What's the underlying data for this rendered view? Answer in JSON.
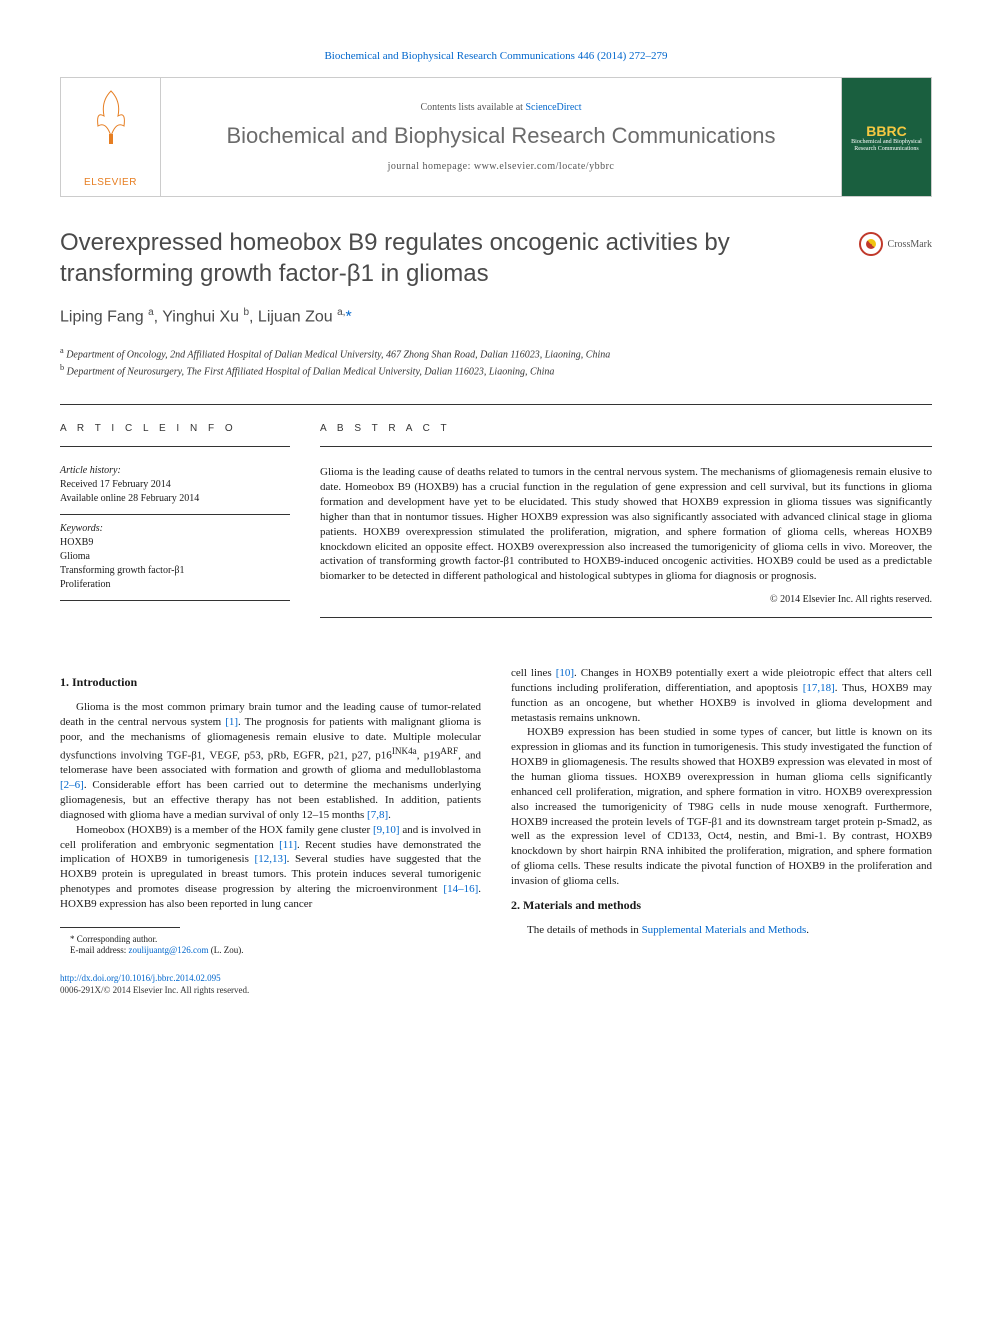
{
  "journal_ref": {
    "prefix": "Biochemical and Biophysical Research Communications 446 (2014) 272–279",
    "link_label": ""
  },
  "banner": {
    "publisher": "ELSEVIER",
    "contents_prefix": "Contents lists available at ",
    "contents_link": "ScienceDirect",
    "journal_title": "Biochemical and Biophysical Research Communications",
    "homepage_prefix": "journal homepage: ",
    "homepage_url": "www.elsevier.com/locate/ybbrc",
    "cover_label": "Biochemical and Biophysical Research Communications",
    "cover_abbrev": "BBRC"
  },
  "crossmark_label": "CrossMark",
  "title": "Overexpressed homeobox B9 regulates oncogenic activities by transforming growth factor-β1 in gliomas",
  "authors_html": "Liping Fang <sup>a</sup>, Yinghui Xu <sup>b</sup>, Lijuan Zou <sup>a,</sup><a href=\"#\">*</a>",
  "affiliations": [
    "a Department of Oncology, 2nd Affiliated Hospital of Dalian Medical University, 467 Zhong Shan Road, Dalian 116023, Liaoning, China",
    "b Department of Neurosurgery, The First Affiliated Hospital of Dalian Medical University, Dalian 116023, Liaoning, China"
  ],
  "info": {
    "heading": "A R T I C L E   I N F O",
    "history_label": "Article history:",
    "history_lines": "Received 17 February 2014\nAvailable online 28 February 2014",
    "keywords_label": "Keywords:",
    "keywords": "HOXB9\nGlioma\nTransforming growth factor-β1\nProliferation"
  },
  "abstract": {
    "heading": "A B S T R A C T",
    "text": "Glioma is the leading cause of deaths related to tumors in the central nervous system. The mechanisms of gliomagenesis remain elusive to date. Homeobox B9 (HOXB9) has a crucial function in the regulation of gene expression and cell survival, but its functions in glioma formation and development have yet to be elucidated. This study showed that HOXB9 expression in glioma tissues was significantly higher than that in nontumor tissues. Higher HOXB9 expression was also significantly associated with advanced clinical stage in glioma patients. HOXB9 overexpression stimulated the proliferation, migration, and sphere formation of glioma cells, whereas HOXB9 knockdown elicited an opposite effect. HOXB9 overexpression also increased the tumorigenicity of glioma cells in vivo. Moreover, the activation of transforming growth factor-β1 contributed to HOXB9-induced oncogenic activities. HOXB9 could be used as a predictable biomarker to be detected in different pathological and histological subtypes in glioma for diagnosis or prognosis.",
    "copyright": "© 2014 Elsevier Inc. All rights reserved."
  },
  "body": {
    "section1_heading": "1. Introduction",
    "section1_p1": "Glioma is the most common primary brain tumor and the leading cause of tumor-related death in the central nervous system [1]. The prognosis for patients with malignant glioma is poor, and the mechanisms of gliomagenesis remain elusive to date. Multiple molecular dysfunctions involving TGF-β1, VEGF, p53, pRb, EGFR, p21, p27, p16INK4a, p19ARF, and telomerase have been associated with formation and growth of glioma and medulloblastoma [2–6]. Considerable effort has been carried out to determine the mechanisms underlying gliomagenesis, but an effective therapy has not been established. In addition, patients diagnosed with glioma have a median survival of only 12–15 months [7,8].",
    "section1_p2": "Homeobox (HOXB9) is a member of the HOX family gene cluster [9,10] and is involved in cell proliferation and embryonic segmentation [11]. Recent studies have demonstrated the implication of HOXB9 in tumorigenesis [12,13]. Several studies have suggested that the HOXB9 protein is upregulated in breast tumors. This protein induces several tumorigenic phenotypes and promotes disease progression by altering the microenvironment [14–16]. HOXB9 expression has also been reported in lung cancer cell lines [10]. Changes in HOXB9 potentially exert a wide pleiotropic effect that alters cell functions including proliferation, differentiation, and apoptosis [17,18]. Thus, HOXB9 may function as an oncogene, but whether HOXB9 is involved in glioma development and metastasis remains unknown.",
    "section1_p3": "HOXB9 expression has been studied in some types of cancer, but little is known on its expression in gliomas and its function in tumorigenesis. This study investigated the function of HOXB9 in gliomagenesis. The results showed that HOXB9 expression was elevated in most of the human glioma tissues. HOXB9 overexpression in human glioma cells significantly enhanced cell proliferation, migration, and sphere formation in vitro. HOXB9 overexpression also increased the tumorigenicity of T98G cells in nude mouse xenograft. Furthermore, HOXB9 increased the protein levels of TGF-β1 and its downstream target protein p-Smad2, as well as the expression level of CD133, Oct4, nestin, and Bmi-1. By contrast, HOXB9 knockdown by short hairpin RNA inhibited the proliferation, migration, and sphere formation of glioma cells. These results indicate the pivotal function of HOXB9 in the proliferation and invasion of glioma cells.",
    "section2_heading": "2. Materials and methods",
    "section2_p1": "The details of methods in Supplemental Materials and Methods."
  },
  "footnotes": {
    "corresponding": "* Corresponding author.",
    "email_label": "E-mail address: ",
    "email": "zoulijuantg@126.com",
    "email_suffix": " (L. Zou)."
  },
  "footer": {
    "doi": "http://dx.doi.org/10.1016/j.bbrc.2014.02.095",
    "issn_line": "0006-291X/© 2014 Elsevier Inc. All rights reserved."
  }
}
